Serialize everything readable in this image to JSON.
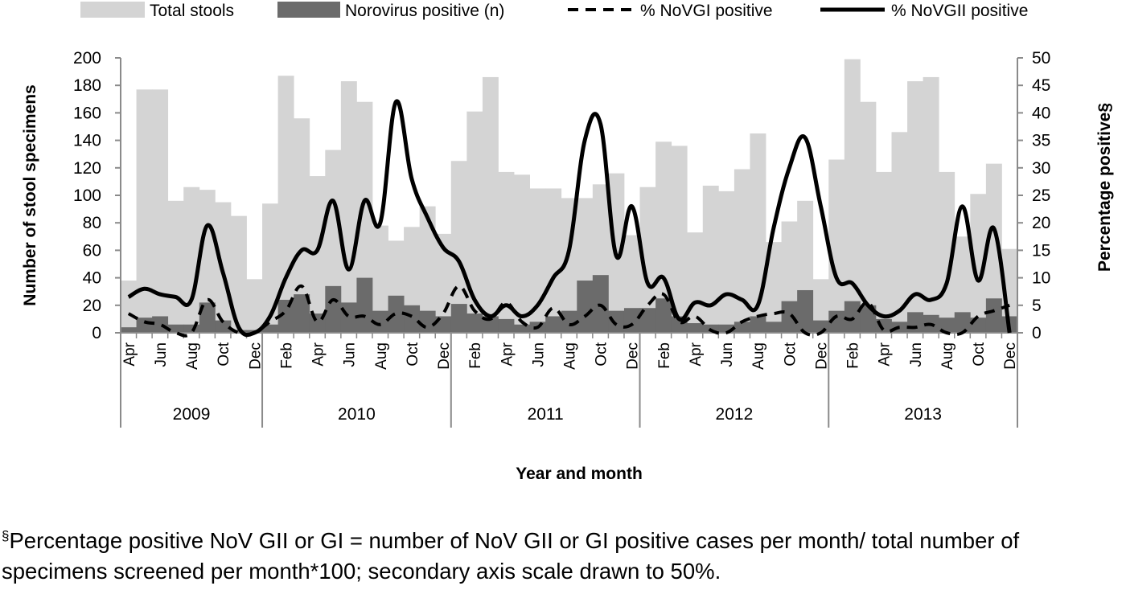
{
  "chart_data": {
    "type": "bar+line",
    "title": "",
    "xlabel": "Year and month",
    "ylabel": "Number of stool specimens",
    "y2label": "Percentage positive§",
    "ylim": [
      0,
      200
    ],
    "y2lim": [
      0,
      50
    ],
    "yticks": [
      "0",
      "20",
      "40",
      "60",
      "80",
      "100",
      "120",
      "140",
      "160",
      "180",
      "200"
    ],
    "y2ticks": [
      "0",
      "5",
      "10",
      "15",
      "20",
      "25",
      "30",
      "35",
      "40",
      "45",
      "50"
    ],
    "years": [
      {
        "label": "2009",
        "start": 0,
        "count": 9
      },
      {
        "label": "2010",
        "start": 9,
        "count": 12
      },
      {
        "label": "2011",
        "start": 21,
        "count": 12
      },
      {
        "label": "2012",
        "start": 33,
        "count": 12
      },
      {
        "label": "2013",
        "start": 45,
        "count": 12
      }
    ],
    "months": [
      "Apr",
      "May",
      "Jun",
      "Jul",
      "Aug",
      "Sep",
      "Oct",
      "Nov",
      "Dec",
      "Jan",
      "Feb",
      "Mar",
      "Apr",
      "May",
      "Jun",
      "Jul",
      "Aug",
      "Sep",
      "Oct",
      "Nov",
      "Dec",
      "Jan",
      "Feb",
      "Mar",
      "Apr",
      "May",
      "Jun",
      "Jul",
      "Aug",
      "Sep",
      "Oct",
      "Nov",
      "Dec",
      "Jan",
      "Feb",
      "Mar",
      "Apr",
      "May",
      "Jun",
      "Jul",
      "Aug",
      "Sep",
      "Oct",
      "Nov",
      "Dec",
      "Jan",
      "Feb",
      "Mar",
      "Apr",
      "May",
      "Jun",
      "Jul",
      "Aug",
      "Sep",
      "Oct",
      "Nov",
      "Dec"
    ],
    "shown_month_labels": [
      "Apr",
      "Jun",
      "Aug",
      "Oct",
      "Dec",
      "Feb",
      "Apr",
      "Jun",
      "Aug",
      "Oct",
      "Dec",
      "Feb",
      "Apr",
      "Jun",
      "Aug",
      "Oct",
      "Dec",
      "Feb",
      "Apr",
      "Jun",
      "Aug",
      "Oct",
      "Dec",
      "Feb",
      "Apr",
      "Jun",
      "Aug",
      "Oct",
      "Dec"
    ],
    "series": [
      {
        "name": "Total stools",
        "type": "bar",
        "axis": "left",
        "color": "#d4d4d4",
        "values": [
          38,
          177,
          177,
          96,
          106,
          104,
          95,
          85,
          39,
          94,
          187,
          156,
          114,
          133,
          183,
          168,
          78,
          67,
          77,
          92,
          72,
          125,
          161,
          186,
          117,
          115,
          105,
          105,
          98,
          98,
          108,
          116,
          71,
          106,
          139,
          136,
          73,
          107,
          103,
          119,
          145,
          66,
          81,
          96,
          39,
          126,
          199,
          168,
          117,
          146,
          183,
          186,
          117,
          70,
          101,
          123,
          61
        ]
      },
      {
        "name": "Norovirus positive (n)",
        "type": "bar",
        "axis": "left",
        "color": "#6b6b6b",
        "values": [
          4,
          11,
          12,
          6,
          6,
          22,
          9,
          2,
          2,
          6,
          24,
          28,
          14,
          34,
          22,
          40,
          16,
          27,
          20,
          16,
          12,
          21,
          14,
          12,
          10,
          6,
          8,
          12,
          16,
          38,
          42,
          16,
          18,
          18,
          25,
          12,
          7,
          6,
          6,
          8,
          12,
          8,
          23,
          31,
          9,
          16,
          23,
          20,
          10,
          8,
          15,
          13,
          11,
          15,
          11,
          25,
          12
        ]
      },
      {
        "name": "% NoVGI positive",
        "type": "line",
        "axis": "right",
        "style": "dashed",
        "color": "#000000",
        "values": [
          3.5,
          2,
          1.5,
          0,
          0,
          6,
          2,
          0,
          0,
          2,
          4,
          8.5,
          2,
          6,
          3,
          3,
          1.5,
          3.5,
          3,
          1,
          3.5,
          8.5,
          4,
          2.5,
          5.5,
          2,
          1,
          4.5,
          1.5,
          3,
          5,
          1.5,
          1.5,
          5,
          7,
          2,
          3,
          0.5,
          0,
          2,
          3,
          3.5,
          3.5,
          0,
          0,
          3,
          2.5,
          5.5,
          0.5,
          1,
          1,
          1.5,
          0,
          0,
          3,
          4,
          5
        ]
      },
      {
        "name": "% NoVGII positive",
        "type": "line",
        "axis": "right",
        "style": "solid",
        "color": "#000000",
        "values": [
          6.5,
          8,
          7,
          6.5,
          6,
          19.5,
          11,
          1,
          0,
          3,
          10,
          15,
          15,
          24,
          11.5,
          24,
          20,
          42,
          28,
          21,
          15.5,
          13,
          6,
          3,
          5,
          3,
          5,
          10,
          15,
          35,
          38,
          14,
          23,
          9,
          10,
          2.5,
          5.5,
          5,
          7,
          6,
          5,
          19,
          30,
          35.5,
          23,
          10,
          9,
          5,
          3,
          4,
          7,
          6,
          9,
          23,
          9.5,
          19,
          0
        ]
      }
    ]
  },
  "legend": [
    {
      "label": "Total stools",
      "swatch": "box",
      "color": "#d4d4d4"
    },
    {
      "label": "Norovirus positive (n)",
      "swatch": "box",
      "color": "#6b6b6b"
    },
    {
      "label": "% NoVGI positive",
      "swatch": "dashed",
      "color": "#000000"
    },
    {
      "label": "% NoVGII positive",
      "swatch": "solid",
      "color": "#000000"
    }
  ],
  "footnote": {
    "marker": "§",
    "text": "Percentage positive NoV GII or GI = number of NoV GII or GI positive cases per month/ total number of specimens screened per month*100; secondary axis scale drawn to 50%."
  }
}
